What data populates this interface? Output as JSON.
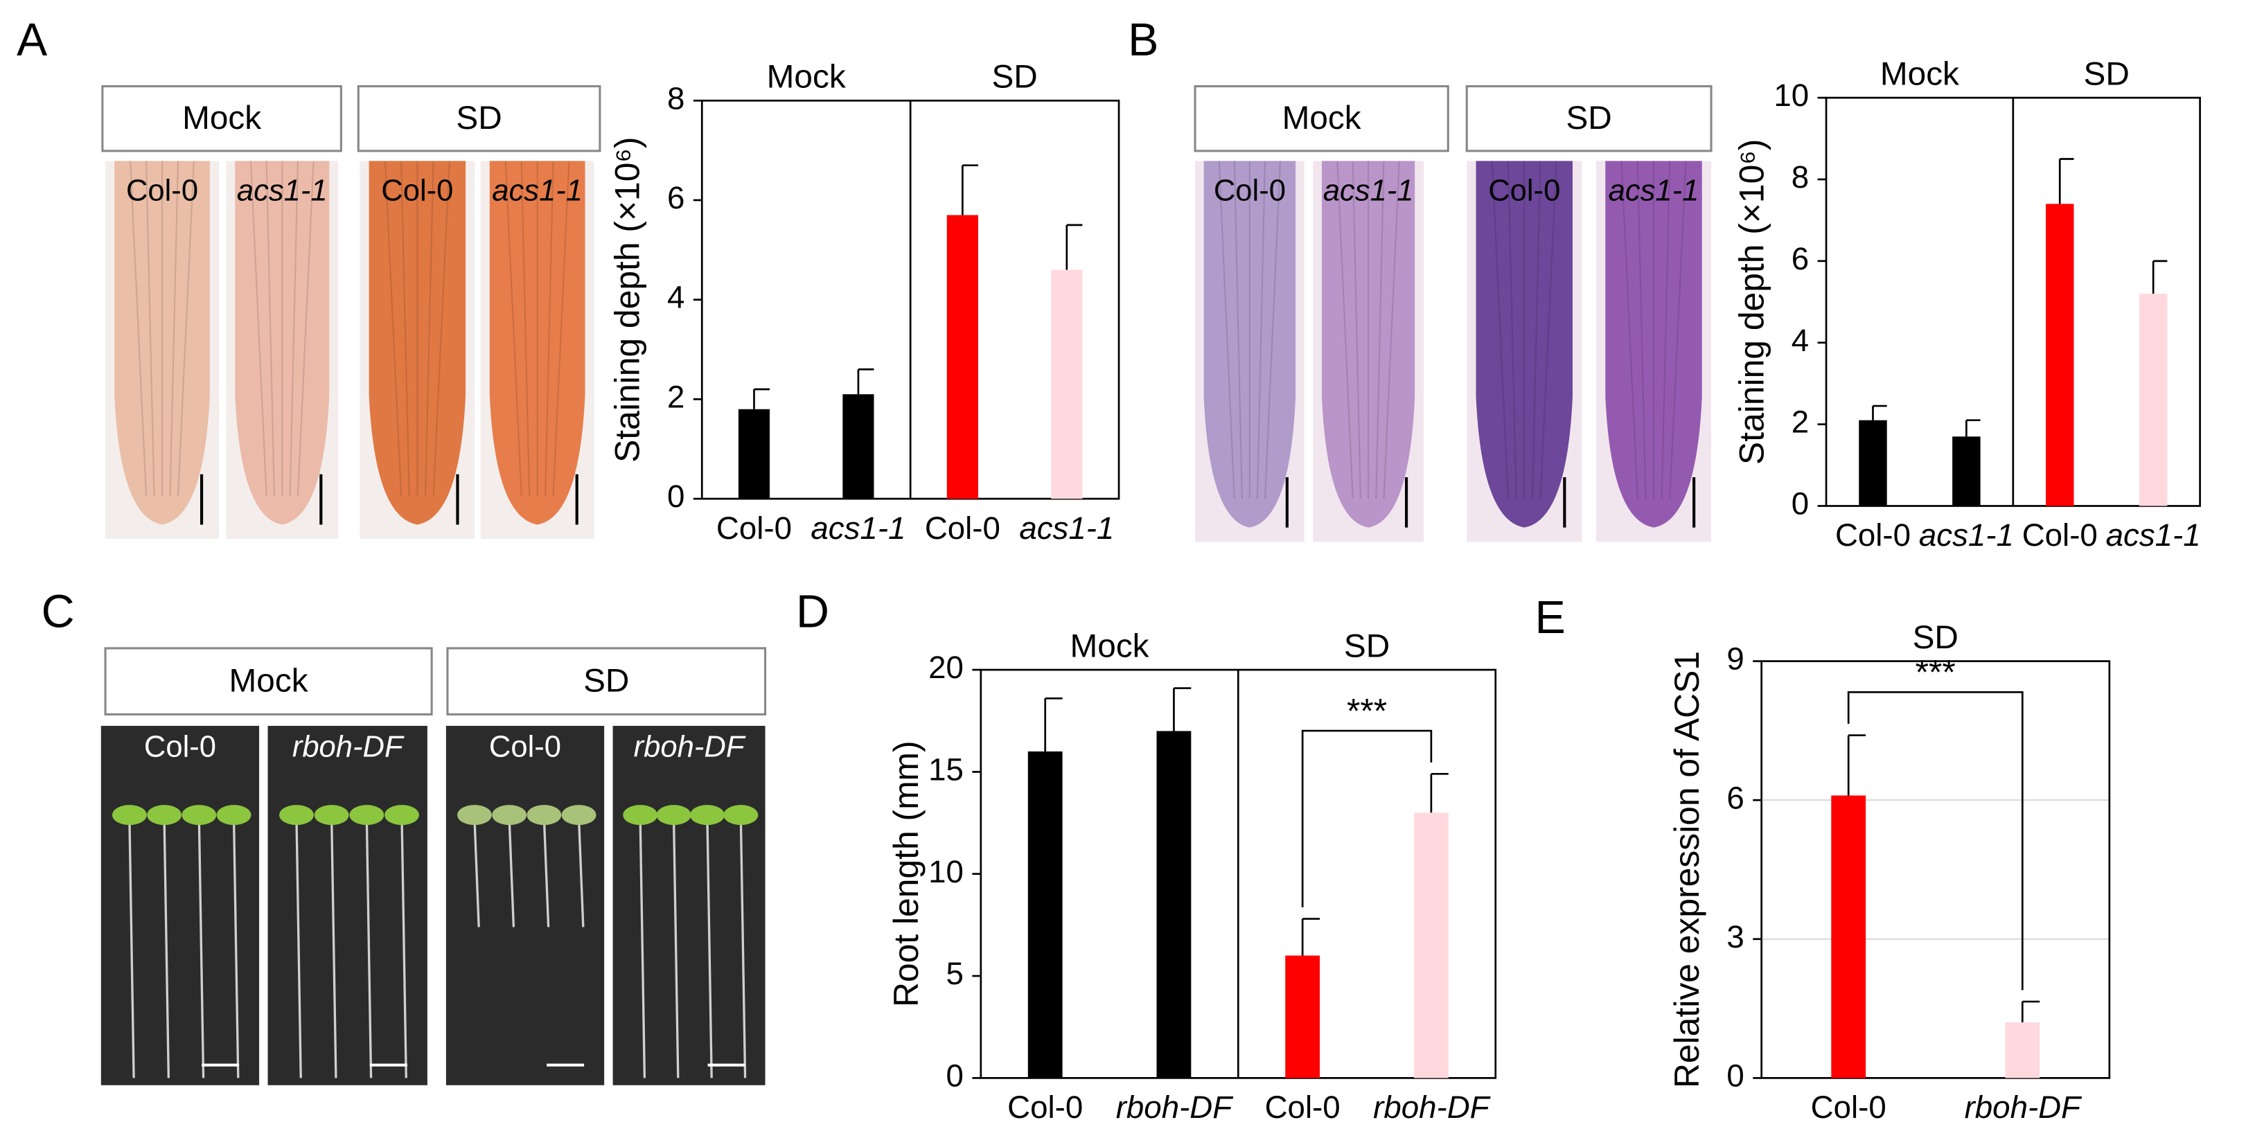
{
  "panels": {
    "A": {
      "letter": "A",
      "conditions": [
        "Mock",
        "SD"
      ],
      "photo_labels": [
        "Col-0",
        "acs1-1",
        "Col-0",
        "acs1-1"
      ]
    },
    "B": {
      "letter": "B",
      "conditions": [
        "Mock",
        "SD"
      ],
      "photo_labels": [
        "Col-0",
        "acs1-1",
        "Col-0",
        "acs1-1"
      ]
    },
    "C": {
      "letter": "C",
      "conditions": [
        "Mock",
        "SD"
      ],
      "photo_labels": [
        "Col-0",
        "rboh-DF",
        "Col-0",
        "rboh-DF"
      ]
    },
    "D": {
      "letter": "D"
    },
    "E": {
      "letter": "E"
    }
  },
  "chart_data": [
    {
      "type": "bar",
      "ylabel": "Staining depth (×10⁶)",
      "groups": [
        "Mock",
        "SD"
      ],
      "categories": [
        "Col-0",
        "acs1-1",
        "Col-0",
        "acs1-1"
      ],
      "italic": [
        false,
        true,
        false,
        true
      ],
      "values": [
        1.8,
        2.1,
        5.7,
        4.6
      ],
      "errors": [
        0.4,
        0.5,
        1.0,
        0.9
      ],
      "colors": [
        "#000000",
        "#000000",
        "#ff0000",
        "#ffd9de"
      ],
      "ylim": [
        0,
        8
      ],
      "yticks": [
        0,
        2,
        4,
        6,
        8
      ],
      "grid": false
    },
    {
      "type": "bar",
      "ylabel": "Staining depth (×10⁶)",
      "groups": [
        "Mock",
        "SD"
      ],
      "categories": [
        "Col-0",
        "acs1-1",
        "Col-0",
        "acs1-1"
      ],
      "italic": [
        false,
        true,
        false,
        true
      ],
      "values": [
        2.1,
        1.7,
        7.4,
        5.2
      ],
      "errors": [
        0.35,
        0.4,
        1.1,
        0.8
      ],
      "colors": [
        "#000000",
        "#000000",
        "#ff0000",
        "#ffd9de"
      ],
      "ylim": [
        0,
        10
      ],
      "yticks": [
        0,
        2,
        4,
        6,
        8,
        10
      ],
      "grid": false
    },
    {
      "type": "bar",
      "ylabel": "Root length (mm)",
      "groups": [
        "Mock",
        "SD"
      ],
      "categories": [
        "Col-0",
        "rboh-DF",
        "Col-0",
        "rboh-DF"
      ],
      "italic": [
        false,
        true,
        false,
        true
      ],
      "values": [
        16,
        17,
        6,
        13
      ],
      "errors": [
        2.6,
        2.1,
        1.8,
        1.9
      ],
      "colors": [
        "#000000",
        "#000000",
        "#ff0000",
        "#ffd9de"
      ],
      "ylim": [
        0,
        20
      ],
      "yticks": [
        0,
        5,
        10,
        15,
        20
      ],
      "grid": false,
      "significance": "***"
    },
    {
      "type": "bar",
      "ylabel": "Relative expression of ACS1",
      "groups": [
        "SD"
      ],
      "categories": [
        "Col-0",
        "rboh-DF"
      ],
      "italic": [
        false,
        true
      ],
      "values": [
        6.1,
        1.2
      ],
      "errors": [
        1.3,
        0.45
      ],
      "colors": [
        "#ff0000",
        "#ffd9de"
      ],
      "ylim": [
        0,
        9
      ],
      "yticks": [
        0,
        3,
        6,
        9
      ],
      "grid": true,
      "significance": "***"
    }
  ]
}
